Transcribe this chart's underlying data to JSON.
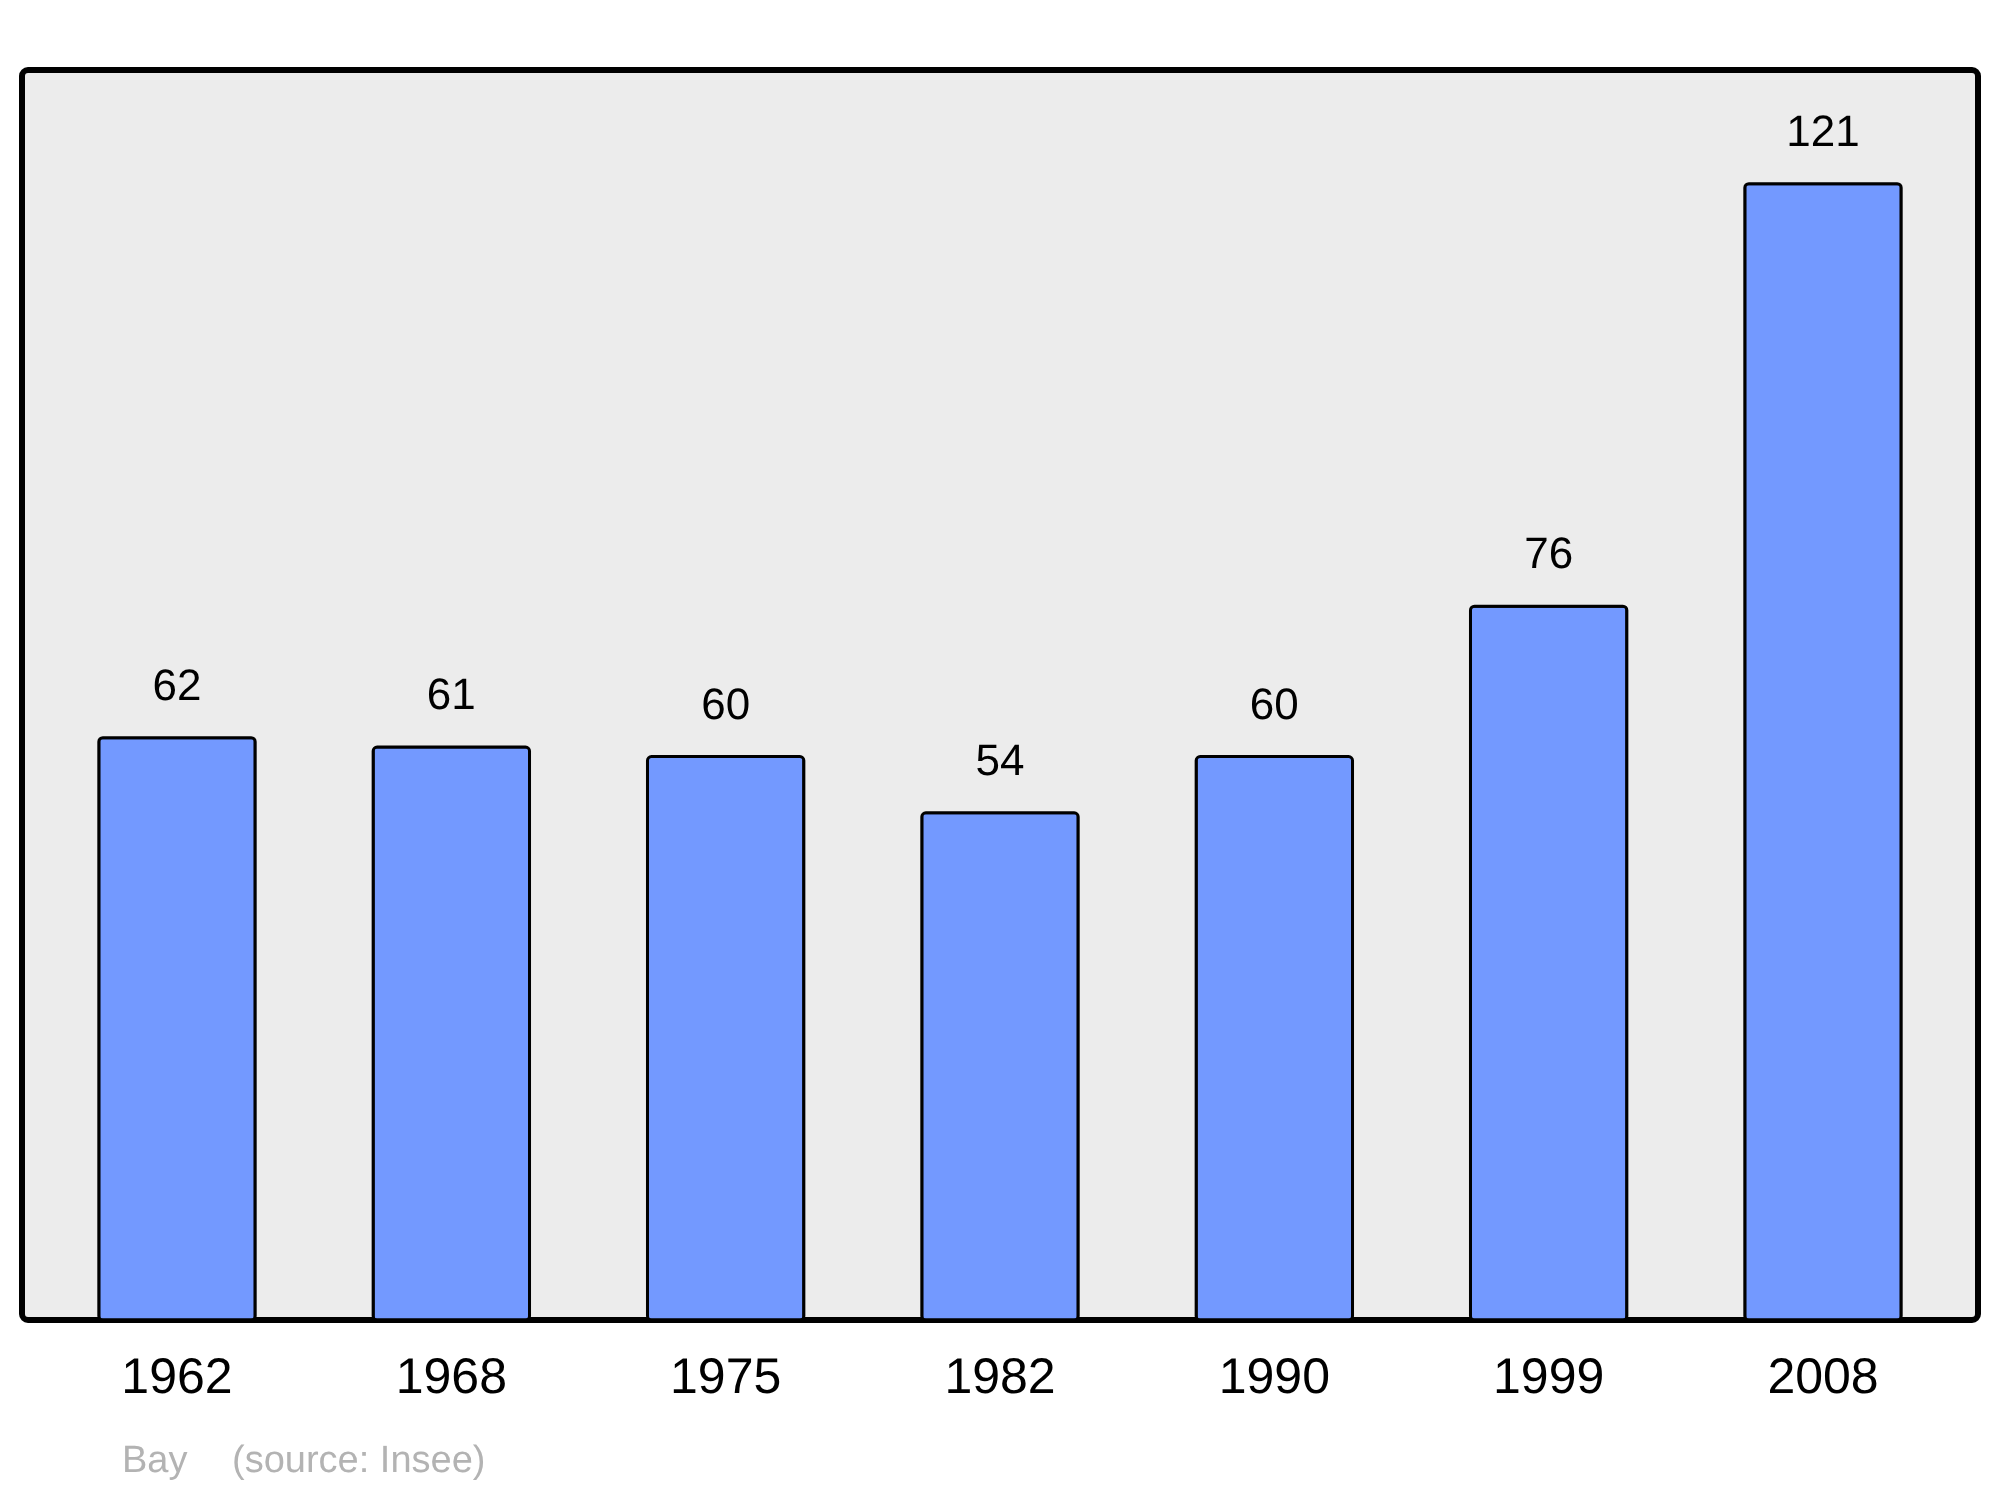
{
  "chart_data": {
    "type": "bar",
    "categories": [
      "1962",
      "1968",
      "1975",
      "1982",
      "1990",
      "1999",
      "2008"
    ],
    "values": [
      62,
      61,
      60,
      54,
      60,
      76,
      121
    ],
    "color": "#7399ff",
    "data_labels": true,
    "annotations": [
      "Bay",
      "(source: Insee)"
    ]
  }
}
